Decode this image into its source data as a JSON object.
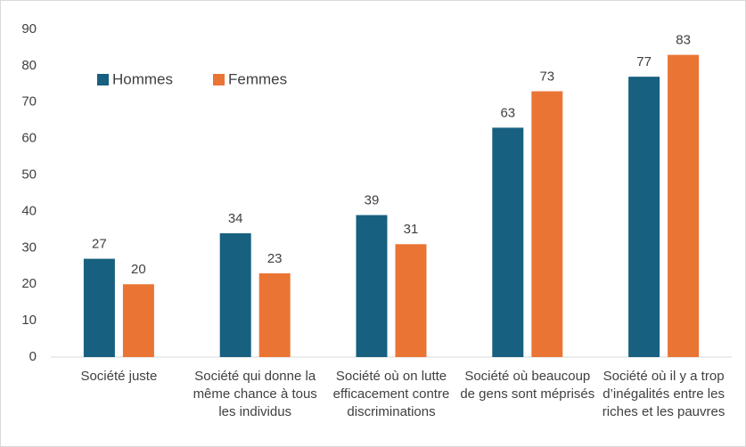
{
  "chart_data": {
    "type": "bar",
    "categories": [
      "Société juste",
      "Société qui donne la même chance à tous les individus",
      "Société où on lutte efficacement contre discriminations",
      "Société où beaucoup de gens sont méprisés",
      "Société où il y a trop d’inégalités entre les riches et les pauvres"
    ],
    "series": [
      {
        "name": "Hommes",
        "color": "#17607f",
        "values": [
          27,
          34,
          39,
          63,
          77
        ]
      },
      {
        "name": "Femmes",
        "color": "#ea7434",
        "values": [
          20,
          23,
          31,
          73,
          83
        ]
      }
    ],
    "ylim": [
      0,
      90
    ],
    "yticks": [
      0,
      10,
      20,
      30,
      40,
      50,
      60,
      70,
      80,
      90
    ],
    "grid": false,
    "legend": "upper-left"
  }
}
